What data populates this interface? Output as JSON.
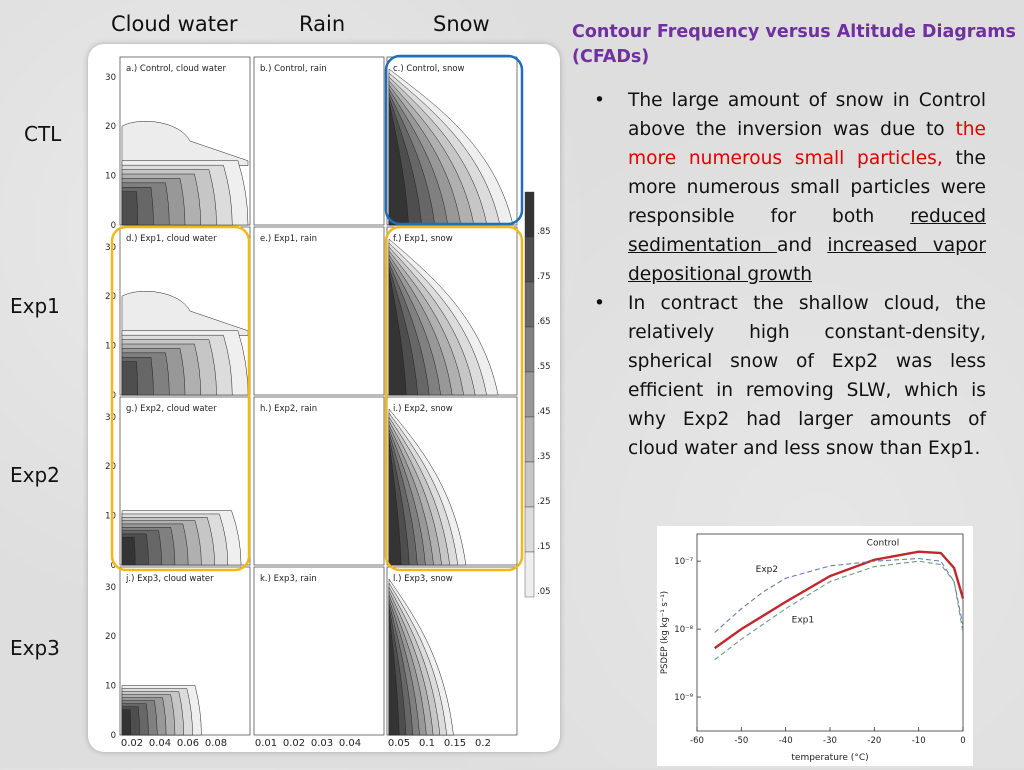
{
  "columns": [
    "Cloud water",
    "Rain",
    "Snow"
  ],
  "rows": [
    "CTL",
    "Exp1",
    "Exp2",
    "Exp3"
  ],
  "panels": [
    {
      "title": "a.) Control, cloud water",
      "kind": "cw",
      "extent": 0.5
    },
    {
      "title": "b.) Control, rain",
      "kind": "rain"
    },
    {
      "title": "c.) Control, snow",
      "kind": "snow",
      "extent": 1.0
    },
    {
      "title": "d.) Exp1, cloud water",
      "kind": "cw",
      "extent": 0.55
    },
    {
      "title": "e.) Exp1, rain",
      "kind": "rain"
    },
    {
      "title": "f.) Exp1, snow",
      "kind": "snow",
      "extent": 0.88
    },
    {
      "title": "g.) Exp2, cloud water",
      "kind": "cw2",
      "extent": 0.45
    },
    {
      "title": "h.) Exp2, rain",
      "kind": "rain"
    },
    {
      "title": "i.) Exp2, snow",
      "kind": "snow",
      "extent": 0.62
    },
    {
      "title": "j.) Exp3, cloud water",
      "kind": "cw3",
      "extent": 0.3
    },
    {
      "title": "k.) Exp3, rain",
      "kind": "rain"
    },
    {
      "title": "l.) Exp3, snow",
      "kind": "snow",
      "extent": 0.52
    }
  ],
  "y_ticks": [
    "30",
    "20",
    "10",
    "0"
  ],
  "x_ticks": {
    "cloud_water": [
      "0.02",
      "0.04",
      "0.06",
      "0.08"
    ],
    "rain": [
      "0.01",
      "0.02",
      "0.03",
      "0.04"
    ],
    "snow": [
      "0.05",
      "0.1",
      "0.15",
      "0.2"
    ]
  },
  "colorbar_labels": [
    ".85",
    ".75",
    ".65",
    ".55",
    ".45",
    ".35",
    ".25",
    ".15",
    ".05"
  ],
  "highlight_colors": {
    "blue": "#1f6fb8",
    "yellow": "#f2b817"
  },
  "slide": {
    "title": "Contour Frequency versus Altitude Diagrams (CFADs)",
    "bullet1": {
      "part1": "The large amount of snow in Control above the inversion was due to ",
      "red": "the more numerous small particles,",
      "part2": " the more numerous small particles were responsible for both ",
      "underline1": "reduced sedimentation ",
      "part3": "and ",
      "underline2": "increased vapor depositional growth"
    },
    "bullet2": "In contract the shallow cloud, the relatively high constant-density, spherical snow of Exp2 was less efficient in removing SLW, which is why Exp2 had larger amounts of cloud water and less snow than Exp1.",
    "bullet_glyph": "•"
  },
  "chart_data": {
    "type": "line",
    "xlabel": "temperature (°C)",
    "ylabel": "PSDEP (kg kg⁻¹ s⁻¹)",
    "x_ticks": [
      "-60",
      "-50",
      "-40",
      "-30",
      "-20",
      "-10",
      "0"
    ],
    "y_ticks": [
      "10⁻⁷",
      "10⁻⁸",
      "10⁻⁹"
    ],
    "xlim": [
      -60,
      0
    ],
    "ylim_log10": [
      -9.5,
      -6.6
    ],
    "yscale": "log",
    "series": [
      {
        "name": "Control",
        "color": "#c0282d",
        "x": [
          -56,
          -50,
          -40,
          -30,
          -20,
          -10,
          -5,
          -2,
          0
        ],
        "y": [
          -8.28,
          -8.0,
          -7.6,
          -7.22,
          -6.98,
          -6.86,
          -6.88,
          -7.1,
          -7.55
        ]
      },
      {
        "name": "Exp2",
        "color": "#6a7ab0",
        "x": [
          -56,
          -50,
          -45,
          -40,
          -30,
          -20,
          -10,
          -5,
          -2,
          0
        ],
        "y": [
          -8.05,
          -7.7,
          -7.45,
          -7.25,
          -7.07,
          -7.0,
          -6.96,
          -7.0,
          -7.3,
          -7.95
        ]
      },
      {
        "name": "Exp1",
        "color": "#6aa07a",
        "x": [
          -56,
          -50,
          -40,
          -30,
          -20,
          -10,
          -5,
          -2,
          0
        ],
        "y": [
          -8.45,
          -8.15,
          -7.7,
          -7.3,
          -7.08,
          -7.0,
          -7.05,
          -7.3,
          -8.05
        ]
      }
    ]
  }
}
